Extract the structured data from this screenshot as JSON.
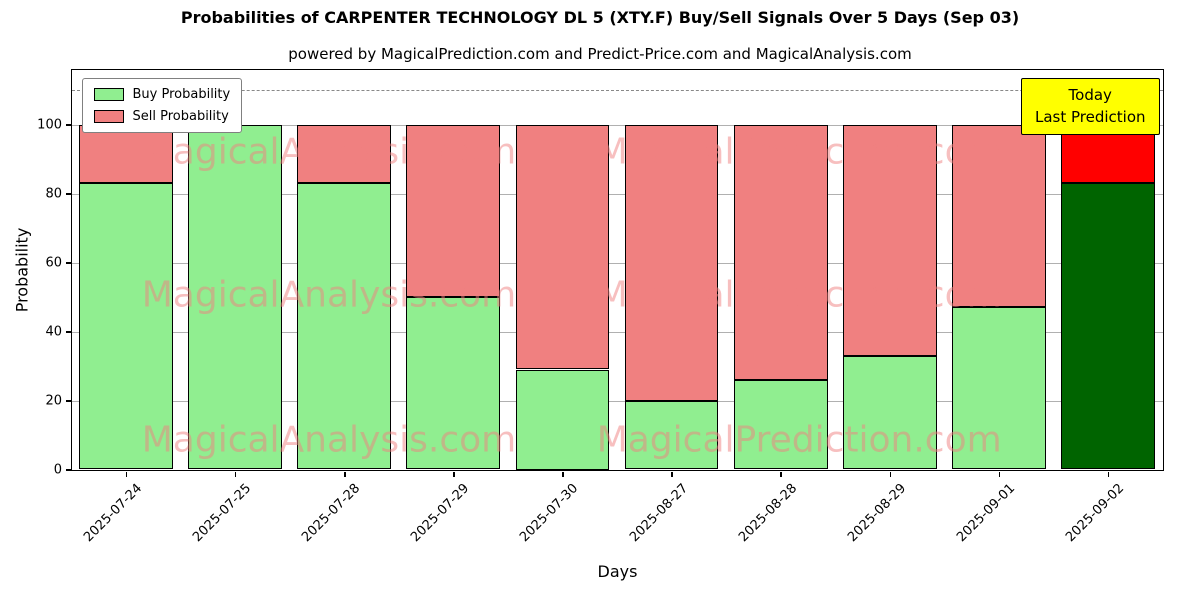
{
  "title": "Probabilities of CARPENTER TECHNOLOGY DL 5 (XTY.F) Buy/Sell Signals Over 5 Days (Sep 03)",
  "subtitle": "powered by MagicalPrediction.com and Predict-Price.com and MagicalAnalysis.com",
  "xlabel": "Days",
  "ylabel": "Probability",
  "legend": {
    "items": [
      {
        "label": "Buy Probability",
        "color": "#90EE90"
      },
      {
        "label": "Sell Probability",
        "color": "#F08080"
      }
    ]
  },
  "annotation": {
    "line1": "Today",
    "line2": "Last Prediction",
    "bg_color": "#FFFF00"
  },
  "watermarks": {
    "left": "MagicalAnalysis.com",
    "right": "MagicalPrediction.com"
  },
  "colors": {
    "buy": "#90EE90",
    "sell": "#F08080",
    "today_buy": "#006400",
    "today_sell": "#FF0000",
    "grid": "#b0b0b0",
    "dashed_line": "#888888",
    "watermark": "rgba(240,128,128,0.5)"
  },
  "chart_data": {
    "type": "bar",
    "stacked": true,
    "title": "Probabilities of CARPENTER TECHNOLOGY DL 5 (XTY.F) Buy/Sell Signals Over 5 Days (Sep 03)",
    "xlabel": "Days",
    "ylabel": "Probability",
    "categories": [
      "2025-07-24",
      "2025-07-25",
      "2025-07-28",
      "2025-07-29",
      "2025-07-30",
      "2025-08-27",
      "2025-08-28",
      "2025-08-29",
      "2025-09-01",
      "2025-09-02"
    ],
    "series": [
      {
        "name": "Buy Probability",
        "values": [
          83,
          100,
          83,
          50,
          29,
          20,
          26,
          33,
          47,
          83
        ]
      },
      {
        "name": "Sell Probability",
        "values": [
          17,
          0,
          17,
          50,
          71,
          80,
          74,
          67,
          53,
          17
        ]
      }
    ],
    "ylim": [
      0,
      116
    ],
    "yticks": [
      0,
      20,
      40,
      60,
      80,
      100
    ],
    "dashed_line_y": 110,
    "grid": true,
    "legend_position": "upper left",
    "today_index": 9
  }
}
